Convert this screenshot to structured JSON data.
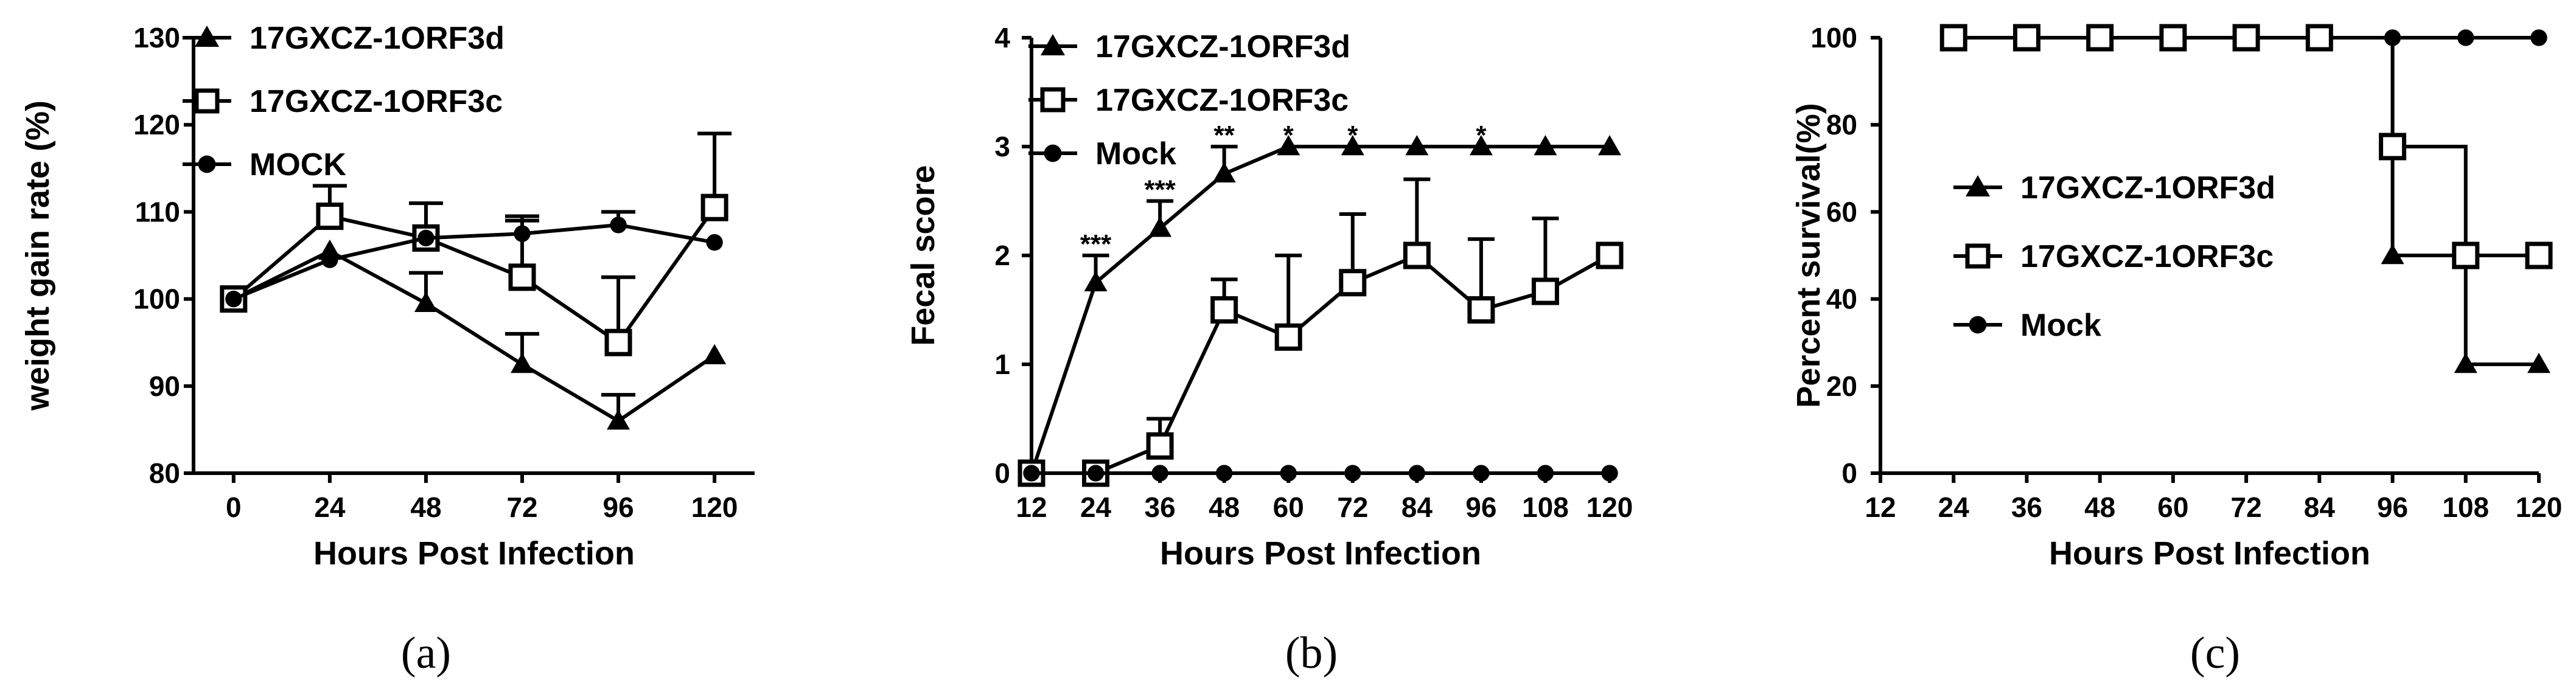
{
  "chart_data": [
    {
      "type": "line",
      "panel_label": "(a)",
      "xlabel": "Hours Post Infection",
      "ylabel": "weight gain rate (%)",
      "x": [
        0,
        24,
        48,
        72,
        96,
        120
      ],
      "xlim": [
        -10,
        130
      ],
      "ylim": [
        80,
        130
      ],
      "yticks": [
        80,
        90,
        100,
        110,
        120,
        130
      ],
      "legend_placement": "top-left",
      "series": [
        {
          "name": "17GXCZ-1ORF3d",
          "marker": "triangle",
          "values": [
            100,
            105.5,
            99.5,
            92.5,
            86,
            93.5
          ],
          "errors": [
            0,
            0,
            3.5,
            3.5,
            3,
            0
          ]
        },
        {
          "name": "17GXCZ-1ORF3c",
          "marker": "square",
          "values": [
            100,
            109.5,
            107,
            102.5,
            95,
            110.5
          ],
          "errors": [
            0,
            3.5,
            4,
            6.5,
            7.5,
            8.5
          ]
        },
        {
          "name": "MOCK",
          "marker": "circle",
          "values": [
            100,
            104.5,
            107,
            107.5,
            108.5,
            106.5
          ],
          "errors": [
            0,
            0,
            0,
            2,
            1.5,
            0
          ]
        }
      ]
    },
    {
      "type": "line",
      "panel_label": "(b)",
      "xlabel": "Hours Post Infection",
      "ylabel": "Fecal score",
      "x": [
        12,
        24,
        36,
        48,
        60,
        72,
        84,
        96,
        108,
        120
      ],
      "xlim": [
        12,
        120
      ],
      "ylim": [
        0,
        4
      ],
      "yticks": [
        0,
        1,
        2,
        3,
        4
      ],
      "legend_placement": "top-left",
      "series": [
        {
          "name": "17GXCZ-1ORF3d",
          "marker": "triangle",
          "values": [
            0,
            1.75,
            2.25,
            2.75,
            3,
            3,
            3,
            3,
            3,
            3
          ],
          "errors": [
            0,
            0.25,
            0.25,
            0.25,
            0,
            0,
            0,
            0,
            0,
            0
          ]
        },
        {
          "name": "17GXCZ-1ORF3c",
          "marker": "square",
          "values": [
            0,
            0,
            0.25,
            1.5,
            1.25,
            1.75,
            2,
            1.5,
            1.67,
            2
          ],
          "errors": [
            0,
            0,
            0.25,
            0.28,
            0.75,
            0.63,
            0.7,
            0.65,
            0.67,
            0
          ]
        },
        {
          "name": "Mock",
          "marker": "circle",
          "values": [
            0,
            0,
            0,
            0,
            0,
            0,
            0,
            0,
            0,
            0
          ],
          "errors": [
            0,
            0,
            0,
            0,
            0,
            0,
            0,
            0,
            0,
            0
          ]
        }
      ],
      "annotations": [
        {
          "x": 24,
          "y": 2.1,
          "text": "***"
        },
        {
          "x": 36,
          "y": 2.6,
          "text": "***"
        },
        {
          "x": 48,
          "y": 3.1,
          "text": "**"
        },
        {
          "x": 60,
          "y": 3.1,
          "text": "*"
        },
        {
          "x": 72,
          "y": 3.1,
          "text": "*"
        },
        {
          "x": 96,
          "y": 3.1,
          "text": "*"
        }
      ]
    },
    {
      "type": "line",
      "step": true,
      "panel_label": "(c)",
      "xlabel": "Hours Post Infection",
      "ylabel": "Percent survival(%)",
      "x": [
        12,
        24,
        36,
        48,
        60,
        72,
        84,
        96,
        108,
        120
      ],
      "xlim": [
        12,
        120
      ],
      "ylim": [
        0,
        100
      ],
      "yticks": [
        0,
        20,
        40,
        60,
        80,
        100
      ],
      "legend_placement": "center-left",
      "series": [
        {
          "name": "17GXCZ-1ORF3d",
          "marker": "triangle",
          "points": [
            [
              24,
              100
            ],
            [
              36,
              100
            ],
            [
              48,
              100
            ],
            [
              60,
              100
            ],
            [
              72,
              100
            ],
            [
              84,
              100
            ],
            [
              96,
              50
            ],
            [
              108,
              25
            ],
            [
              120,
              25
            ]
          ]
        },
        {
          "name": "17GXCZ-1ORF3c",
          "marker": "square",
          "points": [
            [
              24,
              100
            ],
            [
              36,
              100
            ],
            [
              48,
              100
            ],
            [
              60,
              100
            ],
            [
              72,
              100
            ],
            [
              84,
              100
            ],
            [
              96,
              75
            ],
            [
              108,
              50
            ],
            [
              120,
              50
            ]
          ]
        },
        {
          "name": "Mock",
          "marker": "circle",
          "points": [
            [
              96,
              100
            ],
            [
              108,
              100
            ],
            [
              120,
              100
            ]
          ]
        }
      ]
    }
  ]
}
